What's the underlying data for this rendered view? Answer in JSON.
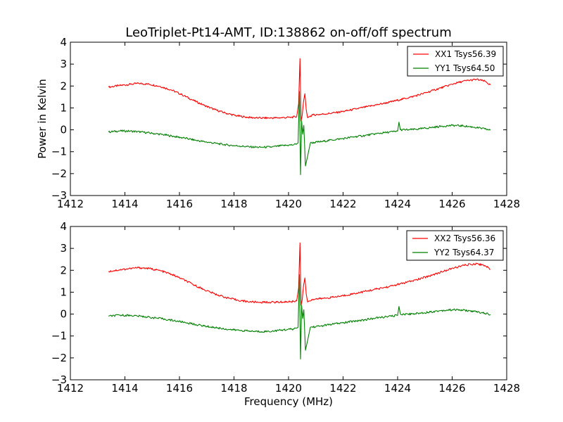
{
  "chart_data": [
    {
      "type": "line",
      "title": "LeoTriplet-Pt14-AMT, ID:138862 on-off/off spectrum",
      "xlabel": "",
      "ylabel": "Power in Kelvin",
      "xlim": [
        1412,
        1428
      ],
      "ylim": [
        -3,
        4
      ],
      "xticks": [
        "1412",
        "1414",
        "1416",
        "1418",
        "1420",
        "1422",
        "1424",
        "1426",
        "1428"
      ],
      "yticks": [
        "−3",
        "−2",
        "−1",
        "0",
        "1",
        "2",
        "3",
        "4"
      ],
      "legend_position": "top-right",
      "series": [
        {
          "name": "XX1 Tsys56.39",
          "color": "#ff0000",
          "points": [
            [
              1413.4,
              1.95
            ],
            [
              1413.8,
              2.02
            ],
            [
              1414.2,
              2.08
            ],
            [
              1414.5,
              2.12
            ],
            [
              1414.9,
              2.08
            ],
            [
              1415.3,
              1.98
            ],
            [
              1415.7,
              1.82
            ],
            [
              1416.1,
              1.6
            ],
            [
              1416.5,
              1.35
            ],
            [
              1416.9,
              1.12
            ],
            [
              1417.3,
              0.92
            ],
            [
              1417.7,
              0.76
            ],
            [
              1418.1,
              0.64
            ],
            [
              1418.5,
              0.57
            ],
            [
              1418.9,
              0.54
            ],
            [
              1419.3,
              0.54
            ],
            [
              1419.7,
              0.55
            ],
            [
              1420.1,
              0.57
            ],
            [
              1420.3,
              0.6
            ],
            [
              1420.37,
              1.2
            ],
            [
              1420.42,
              3.25
            ],
            [
              1420.46,
              0.4
            ],
            [
              1420.5,
              0.65
            ],
            [
              1420.55,
              1.3
            ],
            [
              1420.6,
              1.65
            ],
            [
              1420.65,
              0.9
            ],
            [
              1420.7,
              0.55
            ],
            [
              1420.75,
              0.6
            ],
            [
              1420.9,
              0.68
            ],
            [
              1421.3,
              0.72
            ],
            [
              1421.7,
              0.78
            ],
            [
              1422.1,
              0.86
            ],
            [
              1422.5,
              0.96
            ],
            [
              1422.9,
              1.06
            ],
            [
              1423.3,
              1.16
            ],
            [
              1423.7,
              1.26
            ],
            [
              1424.1,
              1.38
            ],
            [
              1424.5,
              1.5
            ],
            [
              1424.9,
              1.64
            ],
            [
              1425.3,
              1.8
            ],
            [
              1425.7,
              1.96
            ],
            [
              1426.1,
              2.12
            ],
            [
              1426.5,
              2.24
            ],
            [
              1426.9,
              2.3
            ],
            [
              1427.2,
              2.22
            ],
            [
              1427.4,
              2.05
            ]
          ]
        },
        {
          "name": "YY1 Tsys64.50",
          "color": "#008000",
          "points": [
            [
              1413.4,
              -0.1
            ],
            [
              1413.8,
              -0.05
            ],
            [
              1414.2,
              -0.06
            ],
            [
              1414.6,
              -0.1
            ],
            [
              1415.0,
              -0.16
            ],
            [
              1415.4,
              -0.22
            ],
            [
              1415.8,
              -0.3
            ],
            [
              1416.2,
              -0.38
            ],
            [
              1416.6,
              -0.48
            ],
            [
              1417.0,
              -0.56
            ],
            [
              1417.4,
              -0.63
            ],
            [
              1417.8,
              -0.7
            ],
            [
              1418.2,
              -0.74
            ],
            [
              1418.6,
              -0.78
            ],
            [
              1419.0,
              -0.8
            ],
            [
              1419.4,
              -0.78
            ],
            [
              1419.8,
              -0.72
            ],
            [
              1420.2,
              -0.68
            ],
            [
              1420.35,
              -0.6
            ],
            [
              1420.4,
              1.75
            ],
            [
              1420.44,
              -2.05
            ],
            [
              1420.48,
              0.4
            ],
            [
              1420.52,
              -0.2
            ],
            [
              1420.56,
              0.2
            ],
            [
              1420.62,
              -1.65
            ],
            [
              1420.7,
              -1.2
            ],
            [
              1420.8,
              -0.6
            ],
            [
              1421.2,
              -0.54
            ],
            [
              1421.6,
              -0.46
            ],
            [
              1422.0,
              -0.4
            ],
            [
              1422.4,
              -0.32
            ],
            [
              1422.8,
              -0.26
            ],
            [
              1423.2,
              -0.18
            ],
            [
              1423.6,
              -0.12
            ],
            [
              1424.0,
              -0.06
            ],
            [
              1424.05,
              0.35
            ],
            [
              1424.1,
              0.0
            ],
            [
              1424.4,
              0.0
            ],
            [
              1424.8,
              0.04
            ],
            [
              1425.2,
              0.1
            ],
            [
              1425.6,
              0.16
            ],
            [
              1426.0,
              0.2
            ],
            [
              1426.4,
              0.18
            ],
            [
              1426.8,
              0.12
            ],
            [
              1427.2,
              0.04
            ],
            [
              1427.4,
              -0.02
            ]
          ]
        }
      ]
    },
    {
      "type": "line",
      "title": "",
      "xlabel": "Frequency (MHz)",
      "ylabel": "",
      "xlim": [
        1412,
        1428
      ],
      "ylim": [
        -3,
        4
      ],
      "xticks": [
        "1412",
        "1414",
        "1416",
        "1418",
        "1420",
        "1422",
        "1424",
        "1426",
        "1428"
      ],
      "yticks": [
        "−3",
        "−2",
        "−1",
        "0",
        "1",
        "2",
        "3",
        "4"
      ],
      "legend_position": "top-right",
      "series": [
        {
          "name": "XX2 Tsys56.36",
          "color": "#ff0000",
          "points": [
            [
              1413.4,
              1.95
            ],
            [
              1413.8,
              2.02
            ],
            [
              1414.2,
              2.08
            ],
            [
              1414.5,
              2.12
            ],
            [
              1414.9,
              2.08
            ],
            [
              1415.3,
              1.98
            ],
            [
              1415.7,
              1.82
            ],
            [
              1416.1,
              1.6
            ],
            [
              1416.5,
              1.35
            ],
            [
              1416.9,
              1.12
            ],
            [
              1417.3,
              0.92
            ],
            [
              1417.7,
              0.76
            ],
            [
              1418.1,
              0.64
            ],
            [
              1418.5,
              0.57
            ],
            [
              1418.9,
              0.54
            ],
            [
              1419.3,
              0.54
            ],
            [
              1419.7,
              0.55
            ],
            [
              1420.1,
              0.57
            ],
            [
              1420.3,
              0.6
            ],
            [
              1420.37,
              1.2
            ],
            [
              1420.42,
              3.25
            ],
            [
              1420.46,
              0.4
            ],
            [
              1420.5,
              0.65
            ],
            [
              1420.55,
              1.3
            ],
            [
              1420.6,
              1.65
            ],
            [
              1420.65,
              0.9
            ],
            [
              1420.7,
              0.55
            ],
            [
              1420.75,
              0.6
            ],
            [
              1420.9,
              0.68
            ],
            [
              1421.3,
              0.72
            ],
            [
              1421.7,
              0.78
            ],
            [
              1422.1,
              0.86
            ],
            [
              1422.5,
              0.96
            ],
            [
              1422.9,
              1.06
            ],
            [
              1423.3,
              1.16
            ],
            [
              1423.7,
              1.26
            ],
            [
              1424.1,
              1.38
            ],
            [
              1424.5,
              1.5
            ],
            [
              1424.9,
              1.64
            ],
            [
              1425.3,
              1.8
            ],
            [
              1425.7,
              1.96
            ],
            [
              1426.1,
              2.12
            ],
            [
              1426.5,
              2.24
            ],
            [
              1426.9,
              2.3
            ],
            [
              1427.2,
              2.22
            ],
            [
              1427.4,
              2.05
            ]
          ]
        },
        {
          "name": "YY2 Tsys64.37",
          "color": "#008000",
          "points": [
            [
              1413.4,
              -0.1
            ],
            [
              1413.8,
              -0.05
            ],
            [
              1414.2,
              -0.06
            ],
            [
              1414.6,
              -0.1
            ],
            [
              1415.0,
              -0.16
            ],
            [
              1415.4,
              -0.22
            ],
            [
              1415.8,
              -0.3
            ],
            [
              1416.2,
              -0.38
            ],
            [
              1416.6,
              -0.48
            ],
            [
              1417.0,
              -0.56
            ],
            [
              1417.4,
              -0.63
            ],
            [
              1417.8,
              -0.7
            ],
            [
              1418.2,
              -0.74
            ],
            [
              1418.6,
              -0.78
            ],
            [
              1419.0,
              -0.8
            ],
            [
              1419.4,
              -0.78
            ],
            [
              1419.8,
              -0.72
            ],
            [
              1420.2,
              -0.68
            ],
            [
              1420.35,
              -0.6
            ],
            [
              1420.4,
              1.8
            ],
            [
              1420.44,
              -2.05
            ],
            [
              1420.48,
              0.4
            ],
            [
              1420.52,
              -0.2
            ],
            [
              1420.56,
              0.2
            ],
            [
              1420.62,
              -1.65
            ],
            [
              1420.7,
              -1.2
            ],
            [
              1420.8,
              -0.6
            ],
            [
              1421.2,
              -0.54
            ],
            [
              1421.6,
              -0.46
            ],
            [
              1422.0,
              -0.4
            ],
            [
              1422.4,
              -0.32
            ],
            [
              1422.8,
              -0.26
            ],
            [
              1423.2,
              -0.18
            ],
            [
              1423.6,
              -0.12
            ],
            [
              1424.0,
              -0.06
            ],
            [
              1424.05,
              0.35
            ],
            [
              1424.1,
              0.0
            ],
            [
              1424.4,
              0.0
            ],
            [
              1424.8,
              0.04
            ],
            [
              1425.2,
              0.1
            ],
            [
              1425.6,
              0.16
            ],
            [
              1426.0,
              0.2
            ],
            [
              1426.4,
              0.18
            ],
            [
              1426.8,
              0.12
            ],
            [
              1427.2,
              0.04
            ],
            [
              1427.4,
              -0.02
            ]
          ]
        }
      ]
    }
  ]
}
